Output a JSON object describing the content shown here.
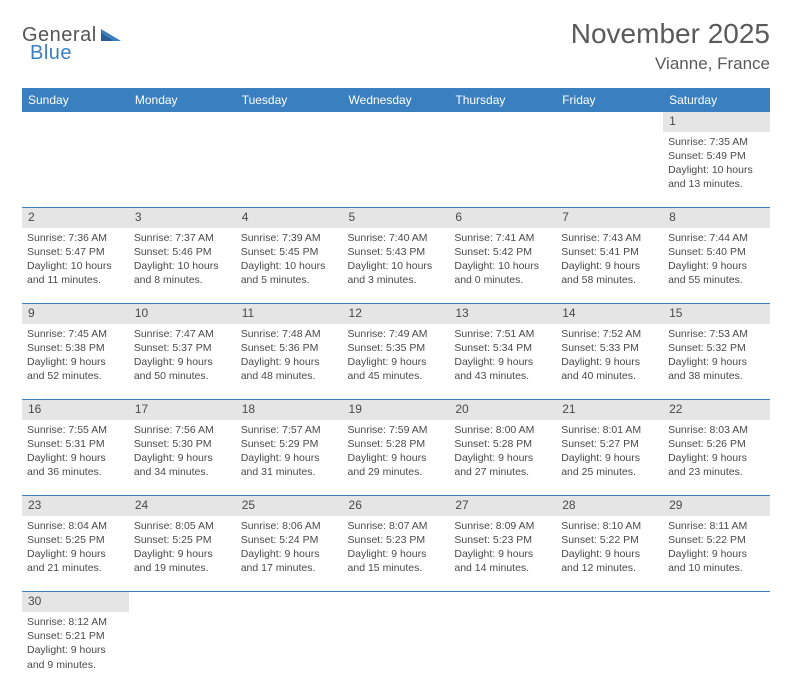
{
  "logo": {
    "part1": "General",
    "part2": "Blue"
  },
  "title": "November 2025",
  "location": "Vianne, France",
  "dayHeaders": [
    "Sunday",
    "Monday",
    "Tuesday",
    "Wednesday",
    "Thursday",
    "Friday",
    "Saturday"
  ],
  "colors": {
    "headerBg": "#3a7fbf",
    "headerText": "#ffffff",
    "dayNumBg": "#e5e5e5",
    "bodyText": "#4a4a4a",
    "rowBorder": "#3a7fbf"
  },
  "weeks": [
    [
      null,
      null,
      null,
      null,
      null,
      null,
      {
        "n": "1",
        "sr": "Sunrise: 7:35 AM",
        "ss": "Sunset: 5:49 PM",
        "d1": "Daylight: 10 hours",
        "d2": "and 13 minutes."
      }
    ],
    [
      {
        "n": "2",
        "sr": "Sunrise: 7:36 AM",
        "ss": "Sunset: 5:47 PM",
        "d1": "Daylight: 10 hours",
        "d2": "and 11 minutes."
      },
      {
        "n": "3",
        "sr": "Sunrise: 7:37 AM",
        "ss": "Sunset: 5:46 PM",
        "d1": "Daylight: 10 hours",
        "d2": "and 8 minutes."
      },
      {
        "n": "4",
        "sr": "Sunrise: 7:39 AM",
        "ss": "Sunset: 5:45 PM",
        "d1": "Daylight: 10 hours",
        "d2": "and 5 minutes."
      },
      {
        "n": "5",
        "sr": "Sunrise: 7:40 AM",
        "ss": "Sunset: 5:43 PM",
        "d1": "Daylight: 10 hours",
        "d2": "and 3 minutes."
      },
      {
        "n": "6",
        "sr": "Sunrise: 7:41 AM",
        "ss": "Sunset: 5:42 PM",
        "d1": "Daylight: 10 hours",
        "d2": "and 0 minutes."
      },
      {
        "n": "7",
        "sr": "Sunrise: 7:43 AM",
        "ss": "Sunset: 5:41 PM",
        "d1": "Daylight: 9 hours",
        "d2": "and 58 minutes."
      },
      {
        "n": "8",
        "sr": "Sunrise: 7:44 AM",
        "ss": "Sunset: 5:40 PM",
        "d1": "Daylight: 9 hours",
        "d2": "and 55 minutes."
      }
    ],
    [
      {
        "n": "9",
        "sr": "Sunrise: 7:45 AM",
        "ss": "Sunset: 5:38 PM",
        "d1": "Daylight: 9 hours",
        "d2": "and 52 minutes."
      },
      {
        "n": "10",
        "sr": "Sunrise: 7:47 AM",
        "ss": "Sunset: 5:37 PM",
        "d1": "Daylight: 9 hours",
        "d2": "and 50 minutes."
      },
      {
        "n": "11",
        "sr": "Sunrise: 7:48 AM",
        "ss": "Sunset: 5:36 PM",
        "d1": "Daylight: 9 hours",
        "d2": "and 48 minutes."
      },
      {
        "n": "12",
        "sr": "Sunrise: 7:49 AM",
        "ss": "Sunset: 5:35 PM",
        "d1": "Daylight: 9 hours",
        "d2": "and 45 minutes."
      },
      {
        "n": "13",
        "sr": "Sunrise: 7:51 AM",
        "ss": "Sunset: 5:34 PM",
        "d1": "Daylight: 9 hours",
        "d2": "and 43 minutes."
      },
      {
        "n": "14",
        "sr": "Sunrise: 7:52 AM",
        "ss": "Sunset: 5:33 PM",
        "d1": "Daylight: 9 hours",
        "d2": "and 40 minutes."
      },
      {
        "n": "15",
        "sr": "Sunrise: 7:53 AM",
        "ss": "Sunset: 5:32 PM",
        "d1": "Daylight: 9 hours",
        "d2": "and 38 minutes."
      }
    ],
    [
      {
        "n": "16",
        "sr": "Sunrise: 7:55 AM",
        "ss": "Sunset: 5:31 PM",
        "d1": "Daylight: 9 hours",
        "d2": "and 36 minutes."
      },
      {
        "n": "17",
        "sr": "Sunrise: 7:56 AM",
        "ss": "Sunset: 5:30 PM",
        "d1": "Daylight: 9 hours",
        "d2": "and 34 minutes."
      },
      {
        "n": "18",
        "sr": "Sunrise: 7:57 AM",
        "ss": "Sunset: 5:29 PM",
        "d1": "Daylight: 9 hours",
        "d2": "and 31 minutes."
      },
      {
        "n": "19",
        "sr": "Sunrise: 7:59 AM",
        "ss": "Sunset: 5:28 PM",
        "d1": "Daylight: 9 hours",
        "d2": "and 29 minutes."
      },
      {
        "n": "20",
        "sr": "Sunrise: 8:00 AM",
        "ss": "Sunset: 5:28 PM",
        "d1": "Daylight: 9 hours",
        "d2": "and 27 minutes."
      },
      {
        "n": "21",
        "sr": "Sunrise: 8:01 AM",
        "ss": "Sunset: 5:27 PM",
        "d1": "Daylight: 9 hours",
        "d2": "and 25 minutes."
      },
      {
        "n": "22",
        "sr": "Sunrise: 8:03 AM",
        "ss": "Sunset: 5:26 PM",
        "d1": "Daylight: 9 hours",
        "d2": "and 23 minutes."
      }
    ],
    [
      {
        "n": "23",
        "sr": "Sunrise: 8:04 AM",
        "ss": "Sunset: 5:25 PM",
        "d1": "Daylight: 9 hours",
        "d2": "and 21 minutes."
      },
      {
        "n": "24",
        "sr": "Sunrise: 8:05 AM",
        "ss": "Sunset: 5:25 PM",
        "d1": "Daylight: 9 hours",
        "d2": "and 19 minutes."
      },
      {
        "n": "25",
        "sr": "Sunrise: 8:06 AM",
        "ss": "Sunset: 5:24 PM",
        "d1": "Daylight: 9 hours",
        "d2": "and 17 minutes."
      },
      {
        "n": "26",
        "sr": "Sunrise: 8:07 AM",
        "ss": "Sunset: 5:23 PM",
        "d1": "Daylight: 9 hours",
        "d2": "and 15 minutes."
      },
      {
        "n": "27",
        "sr": "Sunrise: 8:09 AM",
        "ss": "Sunset: 5:23 PM",
        "d1": "Daylight: 9 hours",
        "d2": "and 14 minutes."
      },
      {
        "n": "28",
        "sr": "Sunrise: 8:10 AM",
        "ss": "Sunset: 5:22 PM",
        "d1": "Daylight: 9 hours",
        "d2": "and 12 minutes."
      },
      {
        "n": "29",
        "sr": "Sunrise: 8:11 AM",
        "ss": "Sunset: 5:22 PM",
        "d1": "Daylight: 9 hours",
        "d2": "and 10 minutes."
      }
    ],
    [
      {
        "n": "30",
        "sr": "Sunrise: 8:12 AM",
        "ss": "Sunset: 5:21 PM",
        "d1": "Daylight: 9 hours",
        "d2": "and 9 minutes."
      },
      null,
      null,
      null,
      null,
      null,
      null
    ]
  ]
}
